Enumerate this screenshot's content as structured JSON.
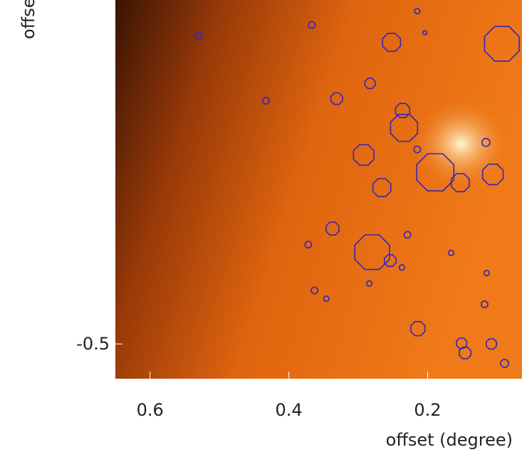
{
  "chart_data": {
    "type": "scatter",
    "x_label": "offset (degree)",
    "y_label": "offset (degree)",
    "xlim": [
      0.65,
      0.064
    ],
    "ylim": [
      -0.55,
      -0.005
    ],
    "xticks": [
      0.6,
      0.4,
      0.2
    ],
    "yticks": [
      -0.5
    ],
    "series": [
      {
        "color": "#3326b8",
        "x": [
          0.093,
          0.252,
          0.283,
          0.331,
          0.236,
          0.234,
          0.292,
          0.189,
          0.153,
          0.106,
          0.266,
          0.337,
          0.28,
          0.254,
          0.372,
          0.363,
          0.214,
          0.151,
          0.146,
          0.108,
          0.089,
          0.116,
          0.215,
          0.53,
          0.433,
          0.367,
          0.215,
          0.118,
          0.229,
          0.166,
          0.346,
          0.284,
          0.115,
          0.204,
          0.237
        ],
        "values": [
          -0.068,
          -0.066,
          -0.125,
          -0.147,
          -0.164,
          -0.189,
          -0.228,
          -0.253,
          -0.268,
          -0.256,
          -0.275,
          -0.334,
          -0.368,
          -0.38,
          -0.357,
          -0.423,
          -0.478,
          -0.499,
          -0.513,
          -0.5,
          -0.528,
          -0.21,
          -0.22,
          -0.056,
          -0.15,
          -0.041,
          -0.021,
          -0.443,
          -0.343,
          -0.369,
          -0.435,
          -0.413,
          -0.398,
          -0.052,
          -0.39
        ],
        "sizes": [
          0.027,
          0.014,
          0.008,
          0.009,
          0.011,
          0.021,
          0.016,
          0.029,
          0.014,
          0.016,
          0.014,
          0.01,
          0.027,
          0.009,
          0.005,
          0.005,
          0.011,
          0.008,
          0.009,
          0.008,
          0.006,
          0.006,
          0.005,
          0.005,
          0.005,
          0.005,
          0.004,
          0.005,
          0.005,
          0.004,
          0.004,
          0.004,
          0.004,
          0.003,
          0.004
        ]
      }
    ]
  }
}
